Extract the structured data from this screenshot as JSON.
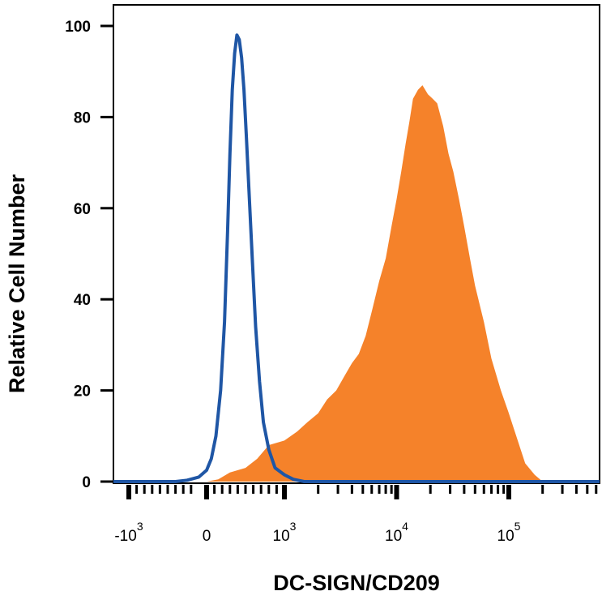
{
  "chart_data": {
    "type": "area",
    "xlabel": "DC-SIGN/CD209",
    "ylabel": "Relative Cell Number",
    "xscale": "biexponential",
    "xlim": [
      -3000,
      400000
    ],
    "ylim": [
      0,
      100
    ],
    "y_ticks": [
      0,
      20,
      40,
      60,
      80,
      100
    ],
    "x_ticks": [
      {
        "value": -1000,
        "base": "-10",
        "exp": "3"
      },
      {
        "value": 0,
        "base": "0",
        "exp": ""
      },
      {
        "value": 1000,
        "base": "10",
        "exp": "3"
      },
      {
        "value": 10000,
        "base": "10",
        "exp": "4"
      },
      {
        "value": 100000,
        "base": "10",
        "exp": "5"
      }
    ],
    "grid": false,
    "series": [
      {
        "style": "filled",
        "color": "#f5822a",
        "points": [
          [
            0,
            0
          ],
          [
            150,
            0.5
          ],
          [
            300,
            2
          ],
          [
            500,
            3
          ],
          [
            650,
            5
          ],
          [
            800,
            8
          ],
          [
            1000,
            9
          ],
          [
            1300,
            11
          ],
          [
            1600,
            13
          ],
          [
            2000,
            15
          ],
          [
            2400,
            18
          ],
          [
            2900,
            20
          ],
          [
            3400,
            23
          ],
          [
            4000,
            26
          ],
          [
            4600,
            28
          ],
          [
            5300,
            32
          ],
          [
            6100,
            38
          ],
          [
            7000,
            44
          ],
          [
            8000,
            49
          ],
          [
            9000,
            56
          ],
          [
            10000,
            62
          ],
          [
            11000,
            68
          ],
          [
            12000,
            74
          ],
          [
            13000,
            79
          ],
          [
            14000,
            84
          ],
          [
            15500,
            86
          ],
          [
            17000,
            87
          ],
          [
            19000,
            85
          ],
          [
            21000,
            84
          ],
          [
            23000,
            83
          ],
          [
            26000,
            78
          ],
          [
            29000,
            72
          ],
          [
            32000,
            68
          ],
          [
            36000,
            62
          ],
          [
            40000,
            56
          ],
          [
            45000,
            49
          ],
          [
            50000,
            43
          ],
          [
            60000,
            35
          ],
          [
            70000,
            27
          ],
          [
            85000,
            20
          ],
          [
            100000,
            15
          ],
          [
            120000,
            9
          ],
          [
            140000,
            4
          ],
          [
            170000,
            1.5
          ],
          [
            200000,
            0
          ]
        ]
      },
      {
        "style": "outline",
        "color": "#1f56a5",
        "points": [
          [
            -400,
            0
          ],
          [
            -250,
            0.3
          ],
          [
            -100,
            1
          ],
          [
            0,
            2.5
          ],
          [
            60,
            5
          ],
          [
            120,
            10
          ],
          [
            180,
            20
          ],
          [
            230,
            35
          ],
          [
            270,
            55
          ],
          [
            300,
            72
          ],
          [
            330,
            86
          ],
          [
            360,
            94
          ],
          [
            390,
            98
          ],
          [
            420,
            97
          ],
          [
            450,
            93
          ],
          [
            480,
            86
          ],
          [
            510,
            76
          ],
          [
            550,
            62
          ],
          [
            590,
            48
          ],
          [
            630,
            34
          ],
          [
            680,
            22
          ],
          [
            730,
            13
          ],
          [
            800,
            7
          ],
          [
            880,
            3
          ],
          [
            1000,
            1.5
          ],
          [
            1200,
            0.5
          ],
          [
            1500,
            0
          ]
        ]
      }
    ]
  }
}
